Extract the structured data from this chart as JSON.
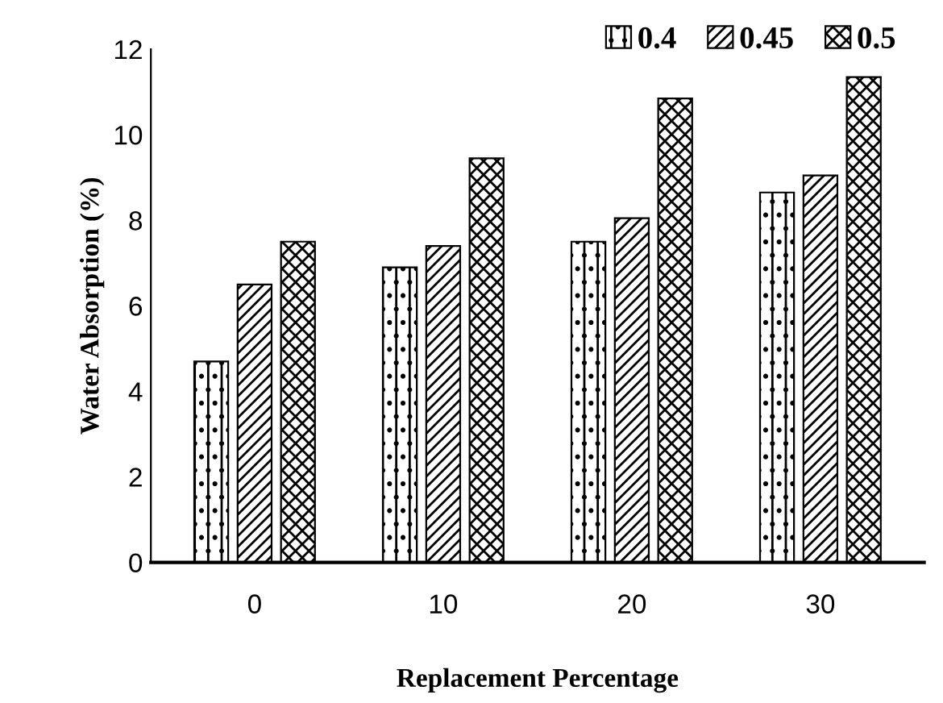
{
  "chart_data": {
    "type": "bar",
    "xlabel": "Replacement Percentage",
    "ylabel": "Water Absorption (%)",
    "categories": [
      "0",
      "10",
      "20",
      "30"
    ],
    "series": [
      {
        "name": "0.4",
        "color": "#000000",
        "values": [
          4.7,
          6.9,
          7.5,
          8.65
        ]
      },
      {
        "name": "0.45",
        "color": "#000000",
        "values": [
          6.5,
          7.4,
          8.05,
          9.05
        ]
      },
      {
        "name": "0.5",
        "color": "#000000",
        "values": [
          7.5,
          9.45,
          10.85,
          11.35
        ]
      }
    ],
    "ylim": [
      0,
      12
    ],
    "yticks": [
      0,
      2,
      4,
      6,
      8,
      10,
      12
    ],
    "grid": false,
    "legend": "top right"
  }
}
